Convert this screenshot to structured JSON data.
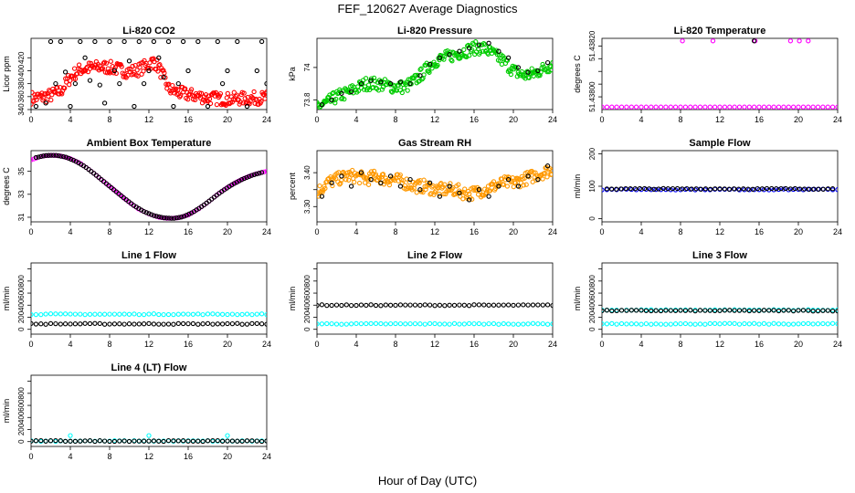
{
  "page": {
    "title": "FEF_120627  Average Diagnostics",
    "xlabel": "Hour of Day (UTC)"
  },
  "colors": {
    "co2": "#ff0000",
    "pressure": "#00cc00",
    "temperature": "#ff00ff",
    "rh": "#ff9900",
    "flow": "#0000ff",
    "line_secondary": "#00ffff",
    "reference": "#000000"
  },
  "chart_data": [
    {
      "id": "co2",
      "type": "scatter",
      "title": "Li-820 CO2",
      "ylabel": "Licor ppm",
      "xlim": [
        0,
        24
      ],
      "ylim": [
        340,
        450
      ],
      "x_ticks": [
        0,
        4,
        8,
        12,
        16,
        20,
        24
      ],
      "y_ticks": [
        340,
        360,
        380,
        400,
        420
      ],
      "series": [
        {
          "color": "#ff0000",
          "style": "dense",
          "x": [
            0,
            1,
            2,
            3,
            4,
            5,
            6,
            7,
            8,
            9,
            10,
            11,
            12,
            12.5,
            13,
            13.5,
            14,
            15,
            16,
            17,
            18,
            19,
            20,
            21,
            22,
            23,
            24
          ],
          "y": [
            358,
            359,
            362,
            368,
            390,
            402,
            404,
            406,
            405,
            402,
            398,
            402,
            410,
            415,
            405,
            390,
            372,
            366,
            363,
            361,
            358,
            357,
            356,
            357,
            357,
            358,
            358
          ]
        },
        {
          "color": "#000000",
          "style": "sparse",
          "x": [
            0.5,
            1.5,
            2,
            2.5,
            3,
            3.5,
            4,
            4.5,
            5,
            5.5,
            6,
            6.5,
            7,
            7.5,
            8,
            8.5,
            9,
            9.5,
            10,
            10.5,
            11,
            11.5,
            12,
            12.5,
            13,
            13.5,
            14,
            14.5,
            15,
            15.5,
            16,
            17,
            18,
            19,
            19.5,
            20,
            21,
            22,
            23,
            23.5,
            24
          ],
          "y": [
            345,
            350,
            445,
            380,
            445,
            398,
            345,
            380,
            445,
            420,
            385,
            445,
            378,
            350,
            445,
            400,
            380,
            445,
            415,
            345,
            445,
            380,
            400,
            445,
            420,
            390,
            445,
            345,
            380,
            445,
            400,
            445,
            345,
            445,
            380,
            400,
            445,
            345,
            400,
            445,
            380
          ]
        }
      ]
    },
    {
      "id": "pressure",
      "type": "scatter",
      "title": "Li-820 Pressure",
      "ylabel": "kPa",
      "xlim": [
        0,
        24
      ],
      "ylim": [
        73.74,
        74.18
      ],
      "x_ticks": [
        0,
        4,
        8,
        12,
        16,
        20,
        24
      ],
      "y_ticks": [
        73.8,
        74.0
      ],
      "series": [
        {
          "color": "#00cc00",
          "style": "dense",
          "x": [
            0,
            1,
            2,
            3,
            4,
            5,
            6,
            7,
            8,
            9,
            10,
            11,
            12,
            13,
            14,
            15,
            16,
            17,
            18,
            19,
            20,
            21,
            22,
            23,
            24
          ],
          "y": [
            73.76,
            73.78,
            73.82,
            73.84,
            73.87,
            73.9,
            73.9,
            73.89,
            73.88,
            73.88,
            73.92,
            73.98,
            74.04,
            74.06,
            74.08,
            74.1,
            74.12,
            74.12,
            74.08,
            74.04,
            73.98,
            73.95,
            73.96,
            73.99,
            74.02
          ]
        },
        {
          "color": "#000000",
          "style": "sparse",
          "x": [
            0.5,
            1.5,
            2.5,
            3.5,
            4.5,
            5.5,
            6.5,
            7.5,
            8.5,
            9.5,
            10.5,
            11.5,
            12.5,
            13.5,
            14.5,
            15.5,
            16.5,
            17.5,
            18.5,
            19.5,
            20.5,
            21.5,
            22.5,
            23.5
          ],
          "y": [
            73.77,
            73.8,
            73.84,
            73.85,
            73.9,
            73.92,
            73.91,
            73.9,
            73.91,
            73.9,
            73.95,
            74.02,
            74.06,
            74.08,
            74.1,
            74.12,
            74.14,
            74.15,
            74.1,
            74.06,
            74.0,
            73.97,
            73.98,
            74.03
          ]
        }
      ]
    },
    {
      "id": "temperature",
      "type": "scatter",
      "title": "Li-820 Temperature",
      "ylabel": "degrees C",
      "xlim": [
        0,
        24
      ],
      "ylim": [
        51.43795,
        51.43823
      ],
      "x_ticks": [
        0,
        4,
        8,
        12,
        16,
        20,
        24
      ],
      "y_ticks": [
        51.438,
        51.43805,
        51.4381,
        51.43815,
        51.4382
      ],
      "y_tick_labels": [
        "51.43800",
        "",
        "",
        "",
        "51.43820"
      ],
      "series": [
        {
          "color": "#ff00ff",
          "style": "sparse",
          "x": [
            0,
            0.5,
            1,
            1.5,
            2,
            2.5,
            3,
            3.5,
            4,
            4.5,
            5,
            5.5,
            6,
            6.5,
            7,
            7.5,
            8,
            8.5,
            9,
            9.5,
            10,
            10.5,
            11,
            11.5,
            12,
            12.5,
            13,
            13.5,
            14,
            14.5,
            15,
            15.5,
            16,
            16.5,
            17,
            17.5,
            18,
            18.5,
            19,
            19.5,
            20,
            20.5,
            21,
            21.5,
            22,
            22.5,
            23,
            23.5,
            24,
            8.2,
            11.3,
            15.6,
            19.2,
            20.1,
            21.0
          ],
          "y": [
            51.43796,
            51.43796,
            51.43796,
            51.43796,
            51.43796,
            51.43796,
            51.43796,
            51.43796,
            51.43796,
            51.43796,
            51.43796,
            51.43796,
            51.43796,
            51.43796,
            51.43796,
            51.43796,
            51.43796,
            51.43796,
            51.43796,
            51.43796,
            51.43796,
            51.43796,
            51.43796,
            51.43796,
            51.43796,
            51.43796,
            51.43796,
            51.43796,
            51.43796,
            51.43796,
            51.43796,
            51.43796,
            51.43796,
            51.43796,
            51.43796,
            51.43796,
            51.43796,
            51.43796,
            51.43796,
            51.43796,
            51.43796,
            51.43796,
            51.43796,
            51.43796,
            51.43796,
            51.43796,
            51.43796,
            51.43796,
            51.43796,
            51.43822,
            51.43822,
            51.43822,
            51.43822,
            51.43822,
            51.43822
          ]
        },
        {
          "color": "#000000",
          "style": "sparse",
          "x": [
            15.5
          ],
          "y": [
            51.43822
          ]
        }
      ]
    },
    {
      "id": "ambient",
      "type": "scatter",
      "title": "Ambient Box Temperature",
      "ylabel": "degrees C",
      "xlim": [
        0,
        24
      ],
      "ylim": [
        30.6,
        36.8
      ],
      "x_ticks": [
        0,
        4,
        8,
        12,
        16,
        20,
        24
      ],
      "y_ticks": [
        31,
        33,
        35
      ],
      "series": [
        {
          "color": "#ff00ff",
          "style": "line",
          "x": [
            0,
            1,
            2,
            3,
            4,
            5,
            6,
            7,
            8,
            9,
            10,
            11,
            12,
            13,
            14,
            15,
            16,
            17,
            18,
            19,
            20,
            21,
            22,
            23,
            24
          ],
          "y": [
            36.0,
            36.3,
            36.4,
            36.35,
            36.1,
            35.7,
            35.1,
            34.4,
            33.7,
            33.0,
            32.3,
            31.7,
            31.3,
            31.0,
            30.9,
            30.95,
            31.2,
            31.7,
            32.3,
            33.0,
            33.6,
            34.1,
            34.5,
            34.8,
            35.0
          ]
        },
        {
          "color": "#000000",
          "style": "line",
          "x": [
            0.5,
            1.5,
            2.5,
            3.5,
            4.5,
            5.5,
            6.5,
            7.5,
            8.5,
            9.5,
            10.5,
            11.5,
            12.5,
            13.5,
            14.5,
            15.5,
            16.5,
            17.5,
            18.5,
            19.5,
            20.5,
            21.5,
            22.5,
            23.5
          ],
          "y": [
            36.2,
            36.38,
            36.4,
            36.25,
            35.9,
            35.4,
            34.75,
            34.05,
            33.35,
            32.65,
            32.0,
            31.5,
            31.15,
            30.95,
            30.9,
            31.05,
            31.45,
            32.0,
            32.65,
            33.3,
            33.85,
            34.3,
            34.65,
            34.9
          ]
        }
      ]
    },
    {
      "id": "rh",
      "type": "scatter",
      "title": "Gas Stream RH",
      "ylabel": "percent",
      "xlim": [
        0,
        24
      ],
      "ylim": [
        3.255,
        3.465
      ],
      "x_ticks": [
        0,
        4,
        8,
        12,
        16,
        20,
        24
      ],
      "y_ticks": [
        3.3,
        3.35,
        3.4
      ],
      "y_tick_labels": [
        "3.30",
        "",
        "3.40"
      ],
      "series": [
        {
          "color": "#ff9900",
          "style": "dense",
          "x": [
            0,
            1,
            2,
            3,
            4,
            5,
            6,
            7,
            8,
            9,
            10,
            11,
            12,
            13,
            14,
            15,
            16,
            17,
            18,
            19,
            20,
            21,
            22,
            23,
            24
          ],
          "y": [
            3.34,
            3.37,
            3.38,
            3.39,
            3.39,
            3.38,
            3.39,
            3.38,
            3.38,
            3.37,
            3.36,
            3.36,
            3.35,
            3.35,
            3.35,
            3.34,
            3.34,
            3.35,
            3.36,
            3.37,
            3.37,
            3.38,
            3.39,
            3.4,
            3.41
          ]
        },
        {
          "color": "#000000",
          "style": "sparse",
          "x": [
            0.5,
            1.5,
            2.5,
            3.5,
            4.5,
            5.5,
            6.5,
            7.5,
            8.5,
            9.5,
            10.5,
            11.5,
            12.5,
            13.5,
            14.5,
            15.5,
            16.5,
            17.5,
            18.5,
            19.5,
            20.5,
            21.5,
            22.5,
            23.5
          ],
          "y": [
            3.33,
            3.37,
            3.39,
            3.36,
            3.4,
            3.38,
            3.37,
            3.39,
            3.36,
            3.38,
            3.35,
            3.37,
            3.33,
            3.36,
            3.34,
            3.32,
            3.35,
            3.33,
            3.36,
            3.38,
            3.36,
            3.39,
            3.38,
            3.42
          ]
        }
      ]
    },
    {
      "id": "sample",
      "type": "scatter",
      "title": "Sample Flow",
      "ylabel": "ml/min",
      "xlim": [
        0,
        24
      ],
      "ylim": [
        -10,
        210
      ],
      "x_ticks": [
        0,
        4,
        8,
        12,
        16,
        20,
        24
      ],
      "y_ticks": [
        0,
        100,
        200
      ],
      "series": [
        {
          "color": "#0000ff",
          "style": "flat",
          "x": [
            0,
            24
          ],
          "y": [
            90,
            90
          ]
        },
        {
          "color": "#000000",
          "style": "flat",
          "x": [
            0.5,
            23.5
          ],
          "y": [
            92,
            92
          ]
        }
      ]
    },
    {
      "id": "line1",
      "type": "scatter",
      "title": "Line 1 Flow",
      "ylabel": "ml/min",
      "xlim": [
        0,
        24
      ],
      "ylim": [
        -80,
        1100
      ],
      "x_ticks": [
        0,
        4,
        8,
        12,
        16,
        20,
        24
      ],
      "y_ticks": [
        0,
        200,
        400,
        600,
        800,
        1000
      ],
      "y_tick_labels": [
        "0",
        "200",
        "400",
        "600",
        "800",
        ""
      ],
      "series": [
        {
          "color": "#00ffff",
          "style": "flat",
          "x": [
            0,
            24
          ],
          "y": [
            250,
            250
          ]
        },
        {
          "color": "#000000",
          "style": "flat",
          "x": [
            0,
            24
          ],
          "y": [
            90,
            90
          ]
        }
      ]
    },
    {
      "id": "line2",
      "type": "scatter",
      "title": "Line 2 Flow",
      "ylabel": "ml/min",
      "xlim": [
        0,
        24
      ],
      "ylim": [
        -80,
        1100
      ],
      "x_ticks": [
        0,
        4,
        8,
        12,
        16,
        20,
        24
      ],
      "y_ticks": [
        0,
        200,
        400,
        600,
        800,
        1000
      ],
      "y_tick_labels": [
        "0",
        "200",
        "400",
        "600",
        "800",
        ""
      ],
      "series": [
        {
          "color": "#00ffff",
          "style": "flat",
          "x": [
            0,
            24
          ],
          "y": [
            90,
            90
          ]
        },
        {
          "color": "#000000",
          "style": "flat",
          "x": [
            0,
            24
          ],
          "y": [
            400,
            400
          ]
        }
      ]
    },
    {
      "id": "line3",
      "type": "scatter",
      "title": "Line 3 Flow",
      "ylabel": "ml/min",
      "xlim": [
        0,
        24
      ],
      "ylim": [
        -80,
        1100
      ],
      "x_ticks": [
        0,
        4,
        8,
        12,
        16,
        20,
        24
      ],
      "y_ticks": [
        0,
        200,
        400,
        600,
        800,
        1000
      ],
      "y_tick_labels": [
        "0",
        "200",
        "400",
        "600",
        "800",
        ""
      ],
      "series": [
        {
          "color": "#00ffff",
          "style": "flat",
          "x": [
            0,
            24
          ],
          "y": [
            90,
            90
          ]
        },
        {
          "color": "#00ffff",
          "style": "flat",
          "x": [
            0,
            24
          ],
          "y": [
            320,
            320
          ]
        },
        {
          "color": "#000000",
          "style": "flat",
          "x": [
            0,
            24
          ],
          "y": [
            310,
            310
          ]
        }
      ]
    },
    {
      "id": "line4",
      "type": "scatter",
      "title": "Line 4 (LT) Flow",
      "ylabel": "ml/min",
      "xlim": [
        0,
        24
      ],
      "ylim": [
        -80,
        1100
      ],
      "x_ticks": [
        0,
        4,
        8,
        12,
        16,
        20,
        24
      ],
      "y_ticks": [
        0,
        200,
        400,
        600,
        800,
        1000
      ],
      "y_tick_labels": [
        "0",
        "200",
        "400",
        "600",
        "800",
        ""
      ],
      "series": [
        {
          "color": "#00ffff",
          "style": "flat",
          "x": [
            0,
            24
          ],
          "y": [
            10,
            10
          ]
        },
        {
          "color": "#00ffff",
          "style": "sparse",
          "x": [
            4,
            12,
            20
          ],
          "y": [
            100,
            100,
            100
          ]
        },
        {
          "color": "#000000",
          "style": "flat",
          "x": [
            0,
            24
          ],
          "y": [
            10,
            10
          ]
        }
      ]
    }
  ]
}
